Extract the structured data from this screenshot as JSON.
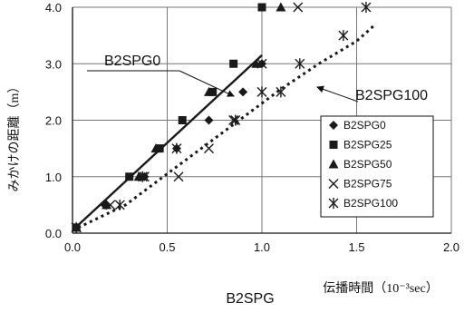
{
  "chart_data": {
    "type": "scatter",
    "xlabel": "伝播時間（10⁻³sec）",
    "ylabel": "みかけの距離（m）",
    "subtitle": "B2SPG",
    "xlim": [
      0,
      2.0
    ],
    "ylim": [
      0,
      4.0
    ],
    "xticks": [
      "0.0",
      "0.5",
      "1.0",
      "1.5",
      "2.0"
    ],
    "yticks": [
      "0.0",
      "1.0",
      "2.0",
      "3.0",
      "4.0"
    ],
    "grid": true,
    "legend_position": "bottom-right",
    "series": [
      {
        "name": "B2SPG0",
        "marker": "diamond",
        "points": [
          [
            0.02,
            0.1
          ],
          [
            0.17,
            0.5
          ],
          [
            0.38,
            1.0
          ],
          [
            0.55,
            1.5
          ],
          [
            0.72,
            2.0
          ],
          [
            0.9,
            2.5
          ],
          [
            1.0,
            3.0
          ]
        ]
      },
      {
        "name": "B2SPG25",
        "marker": "square",
        "points": [
          [
            0.02,
            0.1
          ],
          [
            0.3,
            1.0
          ],
          [
            0.46,
            1.5
          ],
          [
            0.58,
            2.0
          ],
          [
            0.74,
            2.5
          ],
          [
            0.85,
            3.0
          ],
          [
            1.0,
            4.0
          ]
        ]
      },
      {
        "name": "B2SPG50",
        "marker": "triangle",
        "points": [
          [
            0.02,
            0.1
          ],
          [
            0.18,
            0.5
          ],
          [
            0.35,
            1.0
          ],
          [
            0.44,
            1.5
          ],
          [
            0.72,
            2.5
          ],
          [
            0.97,
            3.0
          ],
          [
            1.1,
            4.0
          ]
        ]
      },
      {
        "name": "B2SPG75",
        "marker": "x",
        "points": [
          [
            0.02,
            0.1
          ],
          [
            0.2,
            0.5
          ],
          [
            0.38,
            1.0
          ],
          [
            0.56,
            1.0
          ],
          [
            0.72,
            1.5
          ],
          [
            0.85,
            2.0
          ],
          [
            1.0,
            3.0
          ],
          [
            1.19,
            4.0
          ]
        ]
      },
      {
        "name": "B2SPG100",
        "marker": "asterisk",
        "points": [
          [
            0.02,
            0.1
          ],
          [
            0.25,
            0.5
          ],
          [
            0.37,
            1.0
          ],
          [
            0.55,
            1.5
          ],
          [
            0.86,
            2.0
          ],
          [
            1.0,
            2.5
          ],
          [
            1.1,
            2.5
          ],
          [
            1.2,
            3.0
          ],
          [
            1.43,
            3.5
          ],
          [
            1.55,
            4.0
          ]
        ]
      }
    ],
    "fit_lines": [
      {
        "name": "B2SPG0",
        "style": "solid",
        "points": [
          [
            0.0,
            0.05
          ],
          [
            1.0,
            3.15
          ]
        ]
      },
      {
        "name": "B2SPG100",
        "style": "dotted",
        "points": [
          [
            0.0,
            0.05
          ],
          [
            0.28,
            0.5
          ],
          [
            0.5,
            1.05
          ],
          [
            0.7,
            1.55
          ],
          [
            0.9,
            2.05
          ],
          [
            1.1,
            2.55
          ],
          [
            1.3,
            3.0
          ],
          [
            1.5,
            3.4
          ],
          [
            1.6,
            3.7
          ]
        ]
      }
    ],
    "annotations": [
      "B2SPG0",
      "B2SPG100"
    ]
  },
  "colors": {
    "marker": "#1a1a1a",
    "line": "#1a1a1a",
    "grid": "#777777"
  }
}
